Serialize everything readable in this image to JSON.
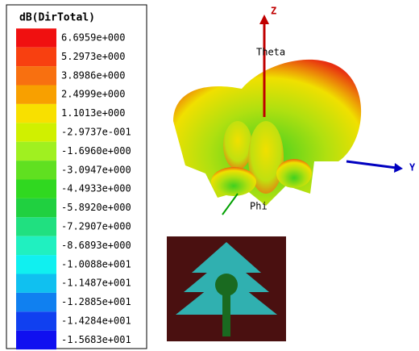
{
  "legend": {
    "title": "dB(DirTotal)",
    "labels": [
      "6.6959e+000",
      "5.2973e+000",
      "3.8986e+000",
      "2.4999e+000",
      "1.1013e+000",
      "-2.9737e-001",
      "-1.6960e+000",
      "-3.0947e+000",
      "-4.4933e+000",
      "-5.8920e+000",
      "-7.2907e+000",
      "-8.6893e+000",
      "-1.0088e+001",
      "-1.1487e+001",
      "-1.2885e+001",
      "-1.4284e+001",
      "-1.5683e+001"
    ]
  },
  "axes": {
    "z": "Z",
    "y": "Y",
    "theta": "Theta",
    "phi": "Phi"
  }
}
